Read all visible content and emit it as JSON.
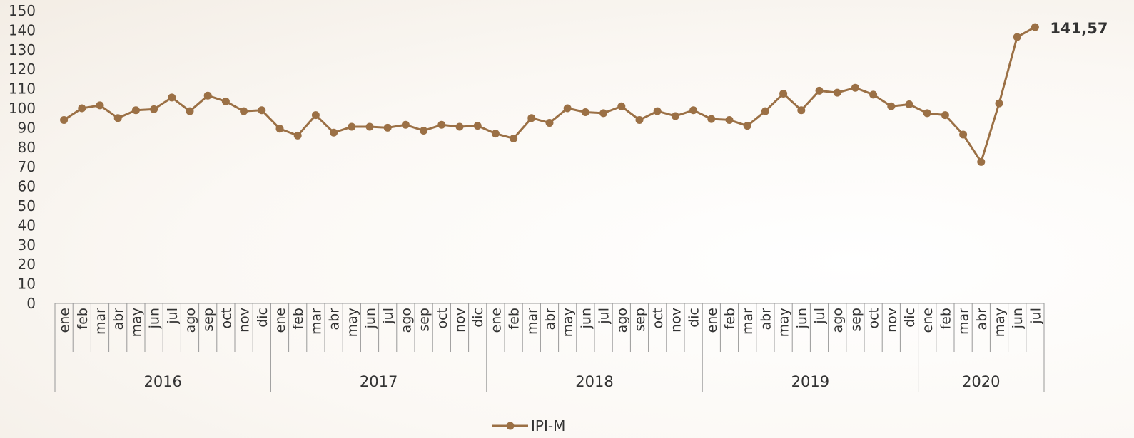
{
  "chart_data": {
    "type": "line",
    "ylim": [
      0,
      150
    ],
    "y_ticks": [
      0,
      10,
      20,
      30,
      40,
      50,
      60,
      70,
      80,
      90,
      100,
      110,
      120,
      130,
      140,
      150
    ],
    "grid": false,
    "legend_position": "bottom",
    "years": [
      {
        "label": "2016",
        "months": [
          "ene",
          "feb",
          "mar",
          "abr",
          "may",
          "jun",
          "jul",
          "ago",
          "sep",
          "oct",
          "nov",
          "dic"
        ]
      },
      {
        "label": "2017",
        "months": [
          "ene",
          "feb",
          "mar",
          "abr",
          "may",
          "jun",
          "jul",
          "ago",
          "sep",
          "oct",
          "nov",
          "dic"
        ]
      },
      {
        "label": "2018",
        "months": [
          "ene",
          "feb",
          "mar",
          "abr",
          "may",
          "jun",
          "jul",
          "ago",
          "sep",
          "oct",
          "nov",
          "dic"
        ]
      },
      {
        "label": "2019",
        "months": [
          "ene",
          "feb",
          "mar",
          "abr",
          "may",
          "jun",
          "jul",
          "ago",
          "sep",
          "oct",
          "nov",
          "dic"
        ]
      },
      {
        "label": "2020",
        "months": [
          "ene",
          "feb",
          "mar",
          "abr",
          "may",
          "jun",
          "jul"
        ]
      }
    ],
    "series": [
      {
        "name": "IPI-M",
        "color": "#9B7045",
        "values": [
          94,
          100,
          101.5,
          95,
          99,
          99.5,
          105.5,
          98.5,
          106.5,
          103.5,
          98.5,
          99,
          89.5,
          86,
          96.5,
          87.5,
          90.5,
          90.5,
          90,
          91.5,
          88.5,
          91.5,
          90.5,
          91,
          87,
          84.5,
          95,
          92.5,
          100,
          98,
          97.5,
          101,
          94,
          98.5,
          96,
          99,
          94.5,
          94,
          91,
          98.5,
          107.5,
          99,
          109,
          108,
          110.5,
          107,
          101,
          102,
          97.5,
          96.5,
          86.5,
          72.5,
          102.5,
          136.5,
          141.57
        ]
      }
    ],
    "end_label": "141,57"
  }
}
